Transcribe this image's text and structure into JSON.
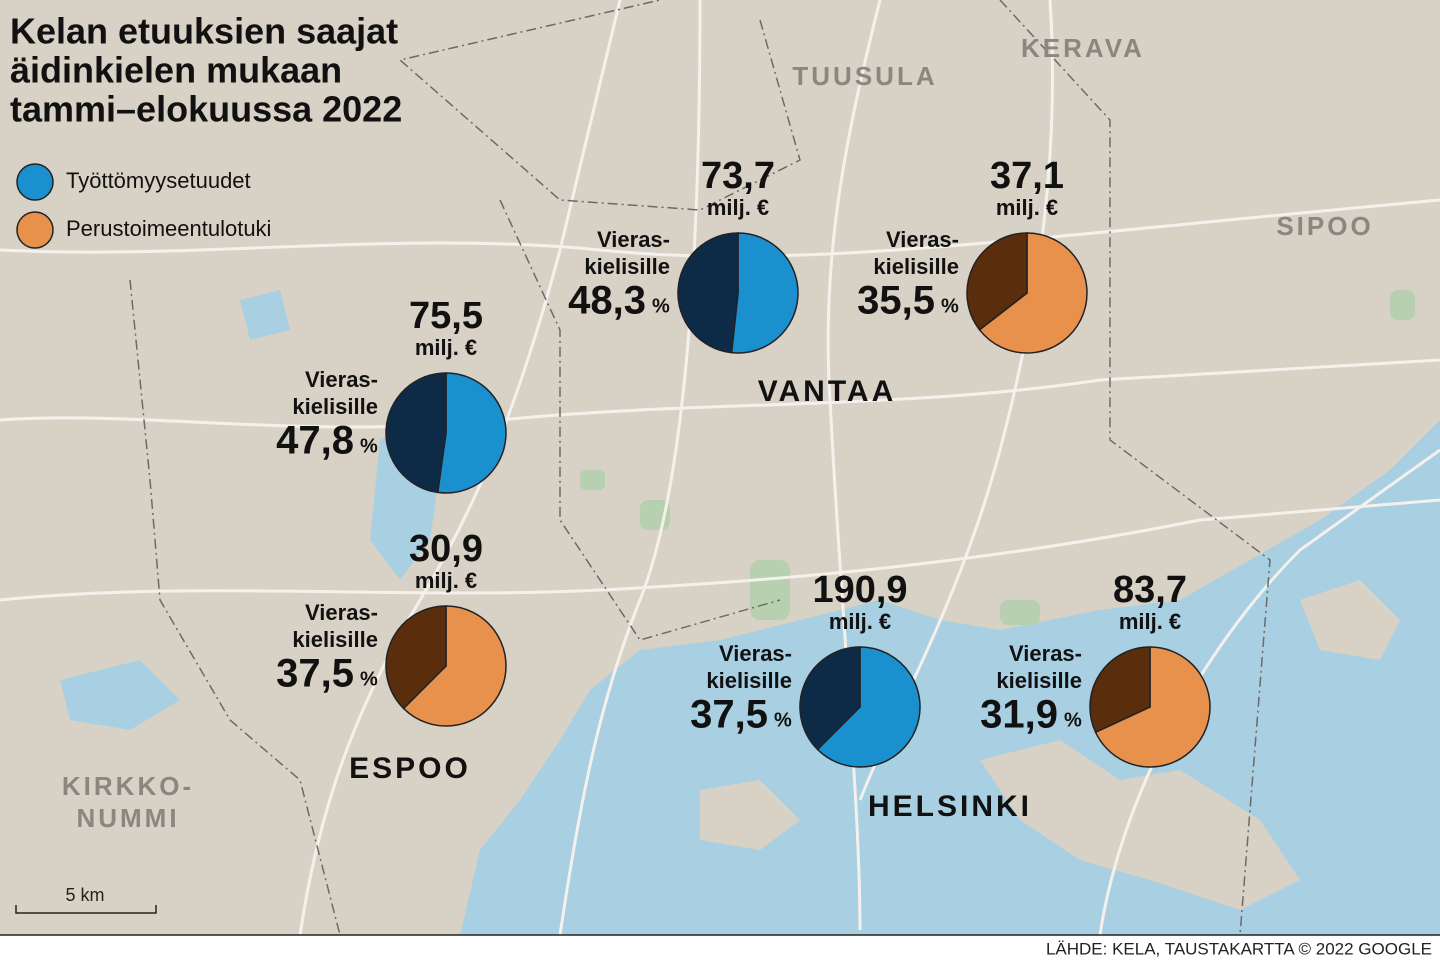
{
  "title": [
    "Kelan etuuksien saajat",
    "äidinkielen mukaan",
    "tammi–elokuussa 2022"
  ],
  "legend": [
    {
      "label": "Työttömyysetuudet",
      "color": "#1a90cf",
      "dark": "#0d2b47"
    },
    {
      "label": "Perustoimeentulotuki",
      "color": "#e8914d",
      "dark": "#5a2d0c"
    }
  ],
  "places": {
    "tuusula": "TUUSULA",
    "kerava": "KERAVA",
    "sipoo": "SIPOO",
    "vantaa": "VANTAA",
    "espoo": "ESPOO",
    "helsinki": "HELSINKI",
    "kirkkonummi": [
      "KIRKKO-",
      "NUMMI"
    ]
  },
  "pies": [
    {
      "legend": 0,
      "total": 75.5,
      "total_label": "75,5",
      "unit": "milj. €",
      "caption": [
        "Vieras-",
        "kielisille"
      ],
      "share": 47.8,
      "share_label": "47,8",
      "share_unit": "%"
    },
    {
      "legend": 1,
      "total": 30.9,
      "total_label": "30,9",
      "unit": "milj. €",
      "caption": [
        "Vieras-",
        "kielisille"
      ],
      "share": 37.5,
      "share_label": "37,5",
      "share_unit": "%"
    },
    {
      "legend": 0,
      "total": 73.7,
      "total_label": "73,7",
      "unit": "milj. €",
      "caption": [
        "Vieras-",
        "kielisille"
      ],
      "share": 48.3,
      "share_label": "48,3",
      "share_unit": "%"
    },
    {
      "legend": 1,
      "total": 37.1,
      "total_label": "37,1",
      "unit": "milj. €",
      "caption": [
        "Vieras-",
        "kielisille"
      ],
      "share": 35.5,
      "share_label": "35,5",
      "share_unit": "%"
    },
    {
      "legend": 0,
      "total": 190.9,
      "total_label": "190,9",
      "unit": "milj. €",
      "caption": [
        "Vieras-",
        "kielisille"
      ],
      "share": 37.5,
      "share_label": "37,5",
      "share_unit": "%"
    },
    {
      "legend": 1,
      "total": 83.7,
      "total_label": "83,7",
      "unit": "milj. €",
      "caption": [
        "Vieras-",
        "kielisille"
      ],
      "share": 31.9,
      "share_label": "31,9",
      "share_unit": "%"
    }
  ],
  "scale": "5 km",
  "source": "LÄHDE: KELA, TAUSTAKARTTA © 2022 GOOGLE"
}
